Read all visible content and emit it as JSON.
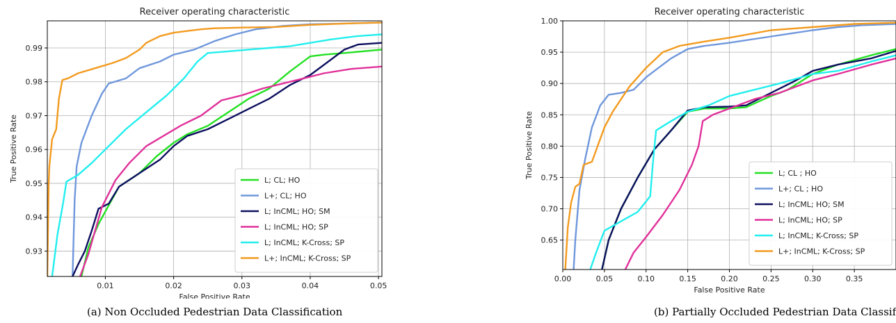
{
  "chart_data": [
    {
      "type": "line",
      "title": "Receiver operating characteristic",
      "xlabel": "False Positive Rate",
      "ylabel": "True Positive Rate",
      "xlim": [
        0.0015,
        0.0505
      ],
      "ylim": [
        0.9225,
        0.998
      ],
      "xticks": [
        0.01,
        0.02,
        0.03,
        0.04,
        0.05
      ],
      "xtick_labels": [
        "0.01",
        "0.02",
        "0.03",
        "0.04",
        "0.05"
      ],
      "yticks": [
        0.93,
        0.94,
        0.95,
        0.96,
        0.97,
        0.98,
        0.99
      ],
      "ytick_labels": [
        "0.93",
        "0.94",
        "0.95",
        "0.96",
        "0.97",
        "0.98",
        "0.99"
      ],
      "grid": true,
      "legend_position": "bottom-right",
      "caption": "(a) Non Occluded Pedestrian Data Classification",
      "series": [
        {
          "name": "L; CL; HO",
          "color": "#22e022",
          "points": [
            [
              0.0065,
              0.9225
            ],
            [
              0.0075,
              0.931
            ],
            [
              0.009,
              0.938
            ],
            [
              0.0105,
              0.9435
            ],
            [
              0.012,
              0.949
            ],
            [
              0.015,
              0.953
            ],
            [
              0.0175,
              0.958
            ],
            [
              0.02,
              0.962
            ],
            [
              0.022,
              0.9645
            ],
            [
              0.025,
              0.967
            ],
            [
              0.028,
              0.971
            ],
            [
              0.031,
              0.975
            ],
            [
              0.034,
              0.978
            ],
            [
              0.037,
              0.983
            ],
            [
              0.04,
              0.9875
            ],
            [
              0.042,
              0.988
            ],
            [
              0.045,
              0.9885
            ],
            [
              0.0505,
              0.9895
            ]
          ]
        },
        {
          "name": "L+; CL; HO",
          "color": "#6f97dc",
          "points": [
            [
              0.0052,
              0.9225
            ],
            [
              0.0055,
              0.945
            ],
            [
              0.0058,
              0.955
            ],
            [
              0.0065,
              0.962
            ],
            [
              0.008,
              0.97
            ],
            [
              0.0095,
              0.9765
            ],
            [
              0.0105,
              0.9795
            ],
            [
              0.013,
              0.981
            ],
            [
              0.015,
              0.984
            ],
            [
              0.018,
              0.986
            ],
            [
              0.02,
              0.988
            ],
            [
              0.023,
              0.9895
            ],
            [
              0.026,
              0.992
            ],
            [
              0.029,
              0.994
            ],
            [
              0.032,
              0.9955
            ],
            [
              0.036,
              0.9965
            ],
            [
              0.04,
              0.997
            ],
            [
              0.045,
              0.9972
            ],
            [
              0.0505,
              0.9975
            ]
          ]
        },
        {
          "name": "L; InCML; HO; SM",
          "color": "#0c0e5e",
          "points": [
            [
              0.0052,
              0.9225
            ],
            [
              0.006,
              0.926
            ],
            [
              0.007,
              0.93
            ],
            [
              0.008,
              0.936
            ],
            [
              0.009,
              0.9425
            ],
            [
              0.0105,
              0.944
            ],
            [
              0.012,
              0.949
            ],
            [
              0.015,
              0.953
            ],
            [
              0.018,
              0.957
            ],
            [
              0.02,
              0.961
            ],
            [
              0.022,
              0.964
            ],
            [
              0.025,
              0.966
            ],
            [
              0.028,
              0.969
            ],
            [
              0.031,
              0.972
            ],
            [
              0.034,
              0.975
            ],
            [
              0.037,
              0.979
            ],
            [
              0.04,
              0.982
            ],
            [
              0.042,
              0.985
            ],
            [
              0.045,
              0.9895
            ],
            [
              0.047,
              0.991
            ],
            [
              0.0505,
              0.9915
            ]
          ]
        },
        {
          "name": "L; InCML; HO; SP",
          "color": "#e0309a",
          "points": [
            [
              0.0063,
              0.9225
            ],
            [
              0.0075,
              0.929
            ],
            [
              0.0085,
              0.936
            ],
            [
              0.0095,
              0.943
            ],
            [
              0.0115,
              0.951
            ],
            [
              0.0135,
              0.956
            ],
            [
              0.016,
              0.961
            ],
            [
              0.0185,
              0.964
            ],
            [
              0.021,
              0.967
            ],
            [
              0.024,
              0.97
            ],
            [
              0.027,
              0.9745
            ],
            [
              0.03,
              0.976
            ],
            [
              0.033,
              0.978
            ],
            [
              0.036,
              0.9795
            ],
            [
              0.039,
              0.981
            ],
            [
              0.042,
              0.9825
            ],
            [
              0.046,
              0.9838
            ],
            [
              0.0505,
              0.9845
            ]
          ]
        },
        {
          "name": "L; InCML; K-Cross; SP",
          "color": "#22eeee",
          "points": [
            [
              0.0022,
              0.9225
            ],
            [
              0.003,
              0.935
            ],
            [
              0.0038,
              0.944
            ],
            [
              0.0043,
              0.9505
            ],
            [
              0.006,
              0.9525
            ],
            [
              0.008,
              0.956
            ],
            [
              0.01,
              0.96
            ],
            [
              0.013,
              0.966
            ],
            [
              0.016,
              0.971
            ],
            [
              0.019,
              0.976
            ],
            [
              0.0215,
              0.981
            ],
            [
              0.0235,
              0.986
            ],
            [
              0.025,
              0.9885
            ],
            [
              0.028,
              0.989
            ],
            [
              0.031,
              0.9895
            ],
            [
              0.034,
              0.99
            ],
            [
              0.037,
              0.9905
            ],
            [
              0.04,
              0.9915
            ],
            [
              0.043,
              0.9925
            ],
            [
              0.047,
              0.9935
            ],
            [
              0.0505,
              0.994
            ]
          ]
        },
        {
          "name": "L+; InCML; K-Cross; SP",
          "color": "#f39a1e",
          "points": [
            [
              0.0015,
              0.9225
            ],
            [
              0.0017,
              0.95
            ],
            [
              0.0018,
              0.955
            ],
            [
              0.0022,
              0.963
            ],
            [
              0.0028,
              0.966
            ],
            [
              0.0032,
              0.975
            ],
            [
              0.0037,
              0.9805
            ],
            [
              0.0045,
              0.981
            ],
            [
              0.006,
              0.9825
            ],
            [
              0.0085,
              0.984
            ],
            [
              0.011,
              0.9855
            ],
            [
              0.013,
              0.987
            ],
            [
              0.015,
              0.9895
            ],
            [
              0.016,
              0.9915
            ],
            [
              0.018,
              0.9935
            ],
            [
              0.02,
              0.9945
            ],
            [
              0.022,
              0.995
            ],
            [
              0.024,
              0.9955
            ],
            [
              0.026,
              0.9958
            ],
            [
              0.03,
              0.996
            ],
            [
              0.035,
              0.9962
            ],
            [
              0.04,
              0.9968
            ],
            [
              0.045,
              0.9972
            ],
            [
              0.0505,
              0.9975
            ]
          ]
        }
      ]
    },
    {
      "type": "line",
      "title": "Receiver operating characteristic",
      "xlabel": "False Positive Rate",
      "ylabel": "True Positive Rate",
      "xlim": [
        0.0,
        0.4
      ],
      "ylim": [
        0.603,
        1.0
      ],
      "xticks": [
        0.0,
        0.05,
        0.1,
        0.15,
        0.2,
        0.25,
        0.3,
        0.35
      ],
      "xtick_labels": [
        "0.00",
        "0.05",
        "0.10",
        "0.15",
        "0.20",
        "0.25",
        "0.30",
        "0.35"
      ],
      "yticks": [
        0.65,
        0.7,
        0.75,
        0.8,
        0.85,
        0.9,
        0.95,
        1.0
      ],
      "ytick_labels": [
        "0.65",
        "0.70",
        "0.75",
        "0.80",
        "0.85",
        "0.90",
        "0.95",
        "1.00"
      ],
      "grid": true,
      "legend_position": "bottom-right",
      "caption": "(b) Partially Occluded Pedestrian Data Classification",
      "series": [
        {
          "name": "L; CL ; HO",
          "color": "#22e022",
          "points": [
            [
              0.047,
              0.603
            ],
            [
              0.055,
              0.65
            ],
            [
              0.07,
              0.7
            ],
            [
              0.09,
              0.75
            ],
            [
              0.11,
              0.795
            ],
            [
              0.13,
              0.825
            ],
            [
              0.15,
              0.855
            ],
            [
              0.17,
              0.86
            ],
            [
              0.2,
              0.86
            ],
            [
              0.22,
              0.862
            ],
            [
              0.25,
              0.88
            ],
            [
              0.27,
              0.89
            ],
            [
              0.3,
              0.915
            ],
            [
              0.33,
              0.93
            ],
            [
              0.37,
              0.945
            ],
            [
              0.4,
              0.955
            ]
          ]
        },
        {
          "name": "L+; CL ; HO",
          "color": "#6f97dc",
          "points": [
            [
              0.013,
              0.603
            ],
            [
              0.015,
              0.65
            ],
            [
              0.02,
              0.73
            ],
            [
              0.027,
              0.78
            ],
            [
              0.035,
              0.83
            ],
            [
              0.045,
              0.865
            ],
            [
              0.055,
              0.882
            ],
            [
              0.07,
              0.885
            ],
            [
              0.085,
              0.89
            ],
            [
              0.1,
              0.91
            ],
            [
              0.115,
              0.925
            ],
            [
              0.13,
              0.94
            ],
            [
              0.15,
              0.955
            ],
            [
              0.17,
              0.96
            ],
            [
              0.2,
              0.965
            ],
            [
              0.25,
              0.975
            ],
            [
              0.3,
              0.985
            ],
            [
              0.33,
              0.99
            ],
            [
              0.36,
              0.993
            ],
            [
              0.4,
              0.995
            ]
          ]
        },
        {
          "name": "L; InCML; HO; SM",
          "color": "#0c0e5e",
          "points": [
            [
              0.047,
              0.603
            ],
            [
              0.055,
              0.65
            ],
            [
              0.07,
              0.7
            ],
            [
              0.09,
              0.75
            ],
            [
              0.11,
              0.795
            ],
            [
              0.13,
              0.825
            ],
            [
              0.15,
              0.857
            ],
            [
              0.17,
              0.862
            ],
            [
              0.2,
              0.863
            ],
            [
              0.22,
              0.865
            ],
            [
              0.25,
              0.885
            ],
            [
              0.28,
              0.905
            ],
            [
              0.3,
              0.92
            ],
            [
              0.33,
              0.93
            ],
            [
              0.37,
              0.94
            ],
            [
              0.4,
              0.952
            ]
          ]
        },
        {
          "name": "L; InCML; HO; SP",
          "color": "#e0309a",
          "points": [
            [
              0.075,
              0.603
            ],
            [
              0.085,
              0.63
            ],
            [
              0.1,
              0.655
            ],
            [
              0.12,
              0.69
            ],
            [
              0.14,
              0.73
            ],
            [
              0.155,
              0.77
            ],
            [
              0.163,
              0.8
            ],
            [
              0.168,
              0.84
            ],
            [
              0.18,
              0.85
            ],
            [
              0.2,
              0.86
            ],
            [
              0.23,
              0.875
            ],
            [
              0.26,
              0.885
            ],
            [
              0.3,
              0.905
            ],
            [
              0.33,
              0.915
            ],
            [
              0.37,
              0.93
            ],
            [
              0.4,
              0.94
            ]
          ]
        },
        {
          "name": "L; InCML; K-Cross; SP",
          "color": "#22eeee",
          "points": [
            [
              0.033,
              0.603
            ],
            [
              0.04,
              0.63
            ],
            [
              0.05,
              0.665
            ],
            [
              0.07,
              0.68
            ],
            [
              0.09,
              0.695
            ],
            [
              0.105,
              0.72
            ],
            [
              0.108,
              0.77
            ],
            [
              0.112,
              0.825
            ],
            [
              0.13,
              0.84
            ],
            [
              0.15,
              0.855
            ],
            [
              0.175,
              0.865
            ],
            [
              0.2,
              0.88
            ],
            [
              0.23,
              0.89
            ],
            [
              0.26,
              0.9
            ],
            [
              0.3,
              0.915
            ],
            [
              0.33,
              0.92
            ],
            [
              0.37,
              0.935
            ],
            [
              0.4,
              0.945
            ]
          ]
        },
        {
          "name": "L+; InCML; K-Cross; SP",
          "color": "#f39a1e",
          "points": [
            [
              0.003,
              0.603
            ],
            [
              0.006,
              0.67
            ],
            [
              0.01,
              0.71
            ],
            [
              0.015,
              0.735
            ],
            [
              0.02,
              0.74
            ],
            [
              0.025,
              0.77
            ],
            [
              0.035,
              0.775
            ],
            [
              0.05,
              0.83
            ],
            [
              0.06,
              0.855
            ],
            [
              0.08,
              0.895
            ],
            [
              0.1,
              0.925
            ],
            [
              0.12,
              0.95
            ],
            [
              0.14,
              0.96
            ],
            [
              0.17,
              0.967
            ],
            [
              0.2,
              0.973
            ],
            [
              0.25,
              0.985
            ],
            [
              0.3,
              0.99
            ],
            [
              0.35,
              0.995
            ],
            [
              0.4,
              0.997
            ]
          ]
        }
      ]
    }
  ]
}
